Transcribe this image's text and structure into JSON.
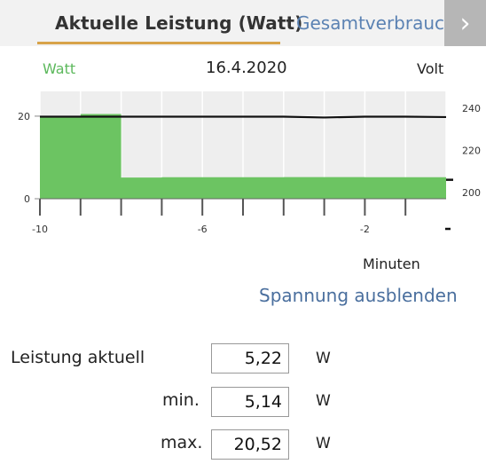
{
  "tabs": [
    {
      "label": "Aktuelle Leistung (Watt)",
      "active": true
    },
    {
      "label": "Gesamtverbrauch",
      "active": false
    }
  ],
  "next_icon": "chevron-right-icon",
  "chart": {
    "left_axis_label": "Watt",
    "date": "16.4.2020",
    "right_axis_label": "Volt",
    "x_axis_label": "Minuten",
    "toggle_label": "Spannung ausblenden"
  },
  "chart_data": {
    "type": "area",
    "x": [
      -10,
      -9,
      -8,
      -7,
      -6,
      -5,
      -4,
      -3,
      -2,
      -1,
      0
    ],
    "xlim": [
      -10,
      0
    ],
    "x_ticks": [
      "-10",
      "-6",
      "-2"
    ],
    "y_left_ticks": [
      "20",
      "0"
    ],
    "ylim_left": [
      0,
      26
    ],
    "y_right_ticks": [
      "240",
      "220",
      "200"
    ],
    "ylim_right": [
      197,
      248
    ],
    "grid": true,
    "series": [
      {
        "axis": "left",
        "color": "#6cc462",
        "points": [
          [
            -10,
            20.0
          ],
          [
            -9,
            20.52
          ],
          [
            -8,
            5.14
          ],
          [
            -7,
            5.2
          ],
          [
            -6,
            5.2
          ],
          [
            -5,
            5.2
          ],
          [
            -4,
            5.25
          ],
          [
            -3,
            5.25
          ],
          [
            -2,
            5.2
          ],
          [
            -1,
            5.2
          ],
          [
            0,
            5.22
          ]
        ]
      },
      {
        "axis": "right",
        "color": "#111111",
        "points": [
          [
            -10,
            236
          ],
          [
            -9,
            236
          ],
          [
            -8,
            236
          ],
          [
            -7,
            236
          ],
          [
            -6,
            236
          ],
          [
            -5,
            236
          ],
          [
            -4,
            236
          ],
          [
            -3,
            235.6
          ],
          [
            -2,
            236
          ],
          [
            -1,
            236
          ],
          [
            0,
            235.8
          ]
        ]
      }
    ]
  },
  "stats": [
    {
      "label": "Leistung aktuell",
      "value": "5,22",
      "unit": "W"
    },
    {
      "label": "min.",
      "value": "5,14",
      "unit": "W"
    },
    {
      "label": "max.",
      "value": "20,52",
      "unit": "W"
    }
  ]
}
